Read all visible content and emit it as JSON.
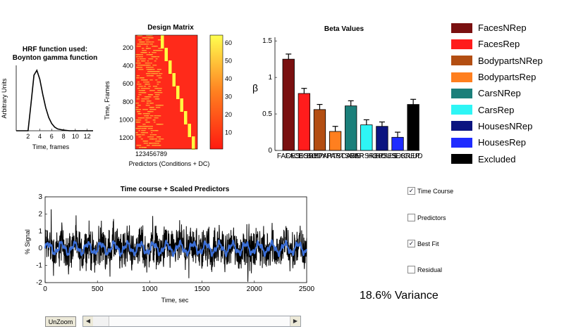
{
  "colors": {
    "FacesNRep": "#7a1010",
    "FacesRep": "#ff1c1c",
    "BodypartsNRep": "#b34e12",
    "BodypartsRep": "#ff7f1f",
    "CarsNRep": "#1b7f7a",
    "CarsRep": "#2ef5f5",
    "HousesNRep": "#0b1480",
    "HousesRep": "#1f2cff",
    "Excluded": "#000000",
    "timecourse": "#000000",
    "bestfit": "#3b6fd8"
  },
  "hrf": {
    "title_line1": "HRF function used:",
    "title_line2": "Boynton gamma function",
    "ylabel": "Arbitrary Units",
    "xlabel": "Time, frames",
    "xticks": [
      "2",
      "4",
      "6",
      "8",
      "10",
      "12"
    ]
  },
  "design_matrix": {
    "title": "Design Matrix",
    "ylabel": "Time, Frames",
    "xlabel": "Predictors (Conditions + DC)",
    "xticklabel": "123456789",
    "yticks": [
      "200",
      "400",
      "600",
      "800",
      "1000",
      "1200"
    ],
    "colorbar_ticks": [
      "60",
      "50",
      "40",
      "30",
      "20",
      "10"
    ]
  },
  "chart_data": [
    {
      "type": "line",
      "title": "HRF function used: Boynton gamma function",
      "xlabel": "Time, frames",
      "ylabel": "Arbitrary Units",
      "x": [
        0,
        1,
        2,
        2.5,
        3,
        3.5,
        4,
        4.5,
        5,
        5.5,
        6,
        6.5,
        7,
        8,
        9,
        10,
        11,
        12,
        13
      ],
      "y": [
        0,
        0,
        0,
        0.45,
        0.92,
        1.0,
        0.85,
        0.6,
        0.38,
        0.22,
        0.12,
        0.06,
        0.03,
        0.01,
        0,
        0,
        0,
        0,
        0
      ],
      "xlim": [
        0,
        13
      ]
    },
    {
      "type": "bar",
      "title": "Beta Values",
      "ylabel": "β",
      "categories": [
        "FACES",
        "FACESREP",
        "BODYPARTS",
        "BODYPARTSREP",
        "CARS",
        "CARSREP",
        "HOUSES",
        "HOUSESREP",
        "EXCLUDED"
      ],
      "tick_labels": [
        "FACES",
        "FACESREP",
        "BODYPARTS",
        "BODYPARTSREP",
        "CARS",
        "CARSREP",
        "HOUSES",
        "HOUSESREP",
        "EXCLUDED"
      ],
      "values": [
        1.25,
        0.78,
        0.56,
        0.26,
        0.61,
        0.35,
        0.33,
        0.18,
        0.63
      ],
      "errors": [
        0.07,
        0.07,
        0.07,
        0.07,
        0.07,
        0.07,
        0.06,
        0.07,
        0.07
      ],
      "yticks": [
        "0",
        "0.5",
        "1",
        "1.5"
      ],
      "ylim": [
        0,
        1.55
      ]
    },
    {
      "type": "line",
      "title": "Time course + Scaled Predictors",
      "xlabel": "Time, sec",
      "ylabel": "% Signal",
      "xlim": [
        0,
        2500
      ],
      "ylim": [
        -2,
        3
      ],
      "xticks": [
        "0",
        "500",
        "1000",
        "1500",
        "2000",
        "2500"
      ],
      "yticks": [
        "3",
        "2",
        "1",
        "0",
        "-1",
        "-2"
      ],
      "series": [
        {
          "name": "Time Course",
          "description": "noisy fMRI time course, roughly -1.5 to 2.5 % signal"
        },
        {
          "name": "Best Fit",
          "description": "smooth oscillating fit, roughly -0.4 to 0.5 % signal"
        }
      ]
    }
  ],
  "legend": {
    "items": [
      {
        "label": "FacesNRep",
        "color": "#7a1010"
      },
      {
        "label": "FacesRep",
        "color": "#ff1c1c"
      },
      {
        "label": "BodypartsNRep",
        "color": "#b34e12"
      },
      {
        "label": "BodypartsRep",
        "color": "#ff7f1f"
      },
      {
        "label": "CarsNRep",
        "color": "#1b7f7a"
      },
      {
        "label": "CarsRep",
        "color": "#2ef5f5"
      },
      {
        "label": "HousesNRep",
        "color": "#0b1480"
      },
      {
        "label": "HousesRep",
        "color": "#1f2cff"
      },
      {
        "label": "Excluded",
        "color": "#000000"
      }
    ]
  },
  "checkboxes": {
    "time_course": {
      "label": "Time Course",
      "checked": true
    },
    "predictors": {
      "label": "Predictors",
      "checked": false
    },
    "best_fit": {
      "label": "Best Fit",
      "checked": true
    },
    "residual": {
      "label": "Residual",
      "checked": false
    }
  },
  "variance": "18.6% Variance",
  "unzoom_label": "UnZoom",
  "icons": {
    "scroll_left": "scroll-left-icon",
    "scroll_right": "scroll-right-icon",
    "check": "checkmark-icon"
  }
}
